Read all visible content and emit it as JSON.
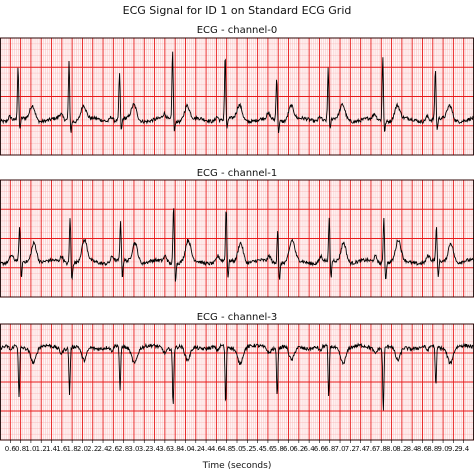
{
  "chart_data": {
    "type": "line",
    "title": "ECG Signal for ID 1 on Standard ECG Grid",
    "xlabel": "Time (seconds)",
    "xlim": [
      0.4,
      9.6
    ],
    "x_ticks": [
      "0.6",
      "0.8",
      "1.0",
      "1.2",
      "1.4",
      "1.6",
      "1.8",
      "2.0",
      "2.2",
      "2.4",
      "2.6",
      "2.8",
      "3.0",
      "3.2",
      "3.4",
      "3.6",
      "3.8",
      "4.0",
      "4.2",
      "4.4",
      "4.6",
      "4.8",
      "5.0",
      "5.2",
      "5.4",
      "5.6",
      "5.8",
      "6.0",
      "6.2",
      "6.4",
      "6.6",
      "6.8",
      "7.0",
      "7.2",
      "7.4",
      "7.6",
      "7.8",
      "8.0",
      "8.2",
      "8.4",
      "8.6",
      "8.8",
      "9.0",
      "9.2",
      "9.4"
    ],
    "x_tick_labels": [
      "0.6",
      "0.8",
      "1.0",
      "1.2",
      "1.4",
      "1.6",
      "1.8",
      "2.0",
      "2.2",
      "2.4",
      "2.6",
      "2.8",
      "3.0",
      "3.2",
      "3.4",
      "3.6",
      "3.8",
      "4.0",
      "4.2",
      "4.4",
      "4.6",
      "4.8",
      "5.0",
      "5.2",
      "5.4",
      "5.6",
      "5.8",
      "6.0",
      "6.2",
      "6.4",
      "6.6",
      "6.8",
      "7.0",
      "7.2",
      "7.4",
      "7.6",
      "7.8",
      "8.0",
      "8.2",
      "8.4",
      "8.6",
      "8.8",
      "9.0",
      "9.2",
      "9.4"
    ],
    "grid": true,
    "grid_major_color": "#e81c1c",
    "grid_minor_color": "#f7b2b2",
    "trace_color": "#000000",
    "series": [
      {
        "name": "ECG - channel-0",
        "ylim": [
          -0.6,
          1.4
        ],
        "baseline": 0.0,
        "beats": [
          {
            "t": 0.75,
            "r": 0.9,
            "s": -0.2
          },
          {
            "t": 1.74,
            "r": 1.0,
            "s": -0.2
          },
          {
            "t": 2.72,
            "r": 0.8,
            "s": -0.2
          },
          {
            "t": 3.75,
            "r": 1.2,
            "s": -0.2
          },
          {
            "t": 4.77,
            "r": 1.1,
            "s": -0.2
          },
          {
            "t": 5.77,
            "r": 0.75,
            "s": -0.2
          },
          {
            "t": 6.77,
            "r": 0.9,
            "s": -0.2
          },
          {
            "t": 7.83,
            "r": 1.1,
            "s": -0.2
          },
          {
            "t": 8.85,
            "r": 0.85,
            "s": -0.2
          }
        ],
        "t_wave": 0.25,
        "p_wave": 0.08
      },
      {
        "name": "ECG - channel-1",
        "ylim": [
          -0.6,
          1.4
        ],
        "baseline": 0.0,
        "beats": [
          {
            "t": 0.78,
            "r": 0.6,
            "s": -0.3
          },
          {
            "t": 1.76,
            "r": 0.8,
            "s": -0.3
          },
          {
            "t": 2.74,
            "r": 0.7,
            "s": -0.3
          },
          {
            "t": 3.77,
            "r": 1.0,
            "s": -0.3
          },
          {
            "t": 4.79,
            "r": 0.9,
            "s": -0.3
          },
          {
            "t": 5.79,
            "r": 0.6,
            "s": -0.3
          },
          {
            "t": 6.79,
            "r": 0.7,
            "s": -0.3
          },
          {
            "t": 7.85,
            "r": 0.8,
            "s": -0.3
          },
          {
            "t": 8.87,
            "r": 0.6,
            "s": -0.3
          }
        ],
        "t_wave": 0.35,
        "p_wave": 0.1
      },
      {
        "name": "ECG - channel-3",
        "ylim": [
          -1.4,
          0.6
        ],
        "baseline": 0.2,
        "beats": [
          {
            "t": 0.77,
            "r": -0.9,
            "s": 0.0
          },
          {
            "t": 1.75,
            "r": -0.8,
            "s": 0.0
          },
          {
            "t": 2.73,
            "r": -0.8,
            "s": 0.0
          },
          {
            "t": 3.76,
            "r": -1.0,
            "s": 0.0
          },
          {
            "t": 4.78,
            "r": -1.0,
            "s": 0.0
          },
          {
            "t": 5.78,
            "r": -0.8,
            "s": 0.0
          },
          {
            "t": 6.78,
            "r": -0.9,
            "s": 0.0
          },
          {
            "t": 7.84,
            "r": -1.1,
            "s": 0.0
          },
          {
            "t": 8.86,
            "r": -0.7,
            "s": 0.0
          }
        ],
        "t_wave": -0.25,
        "p_wave": -0.08
      }
    ]
  }
}
